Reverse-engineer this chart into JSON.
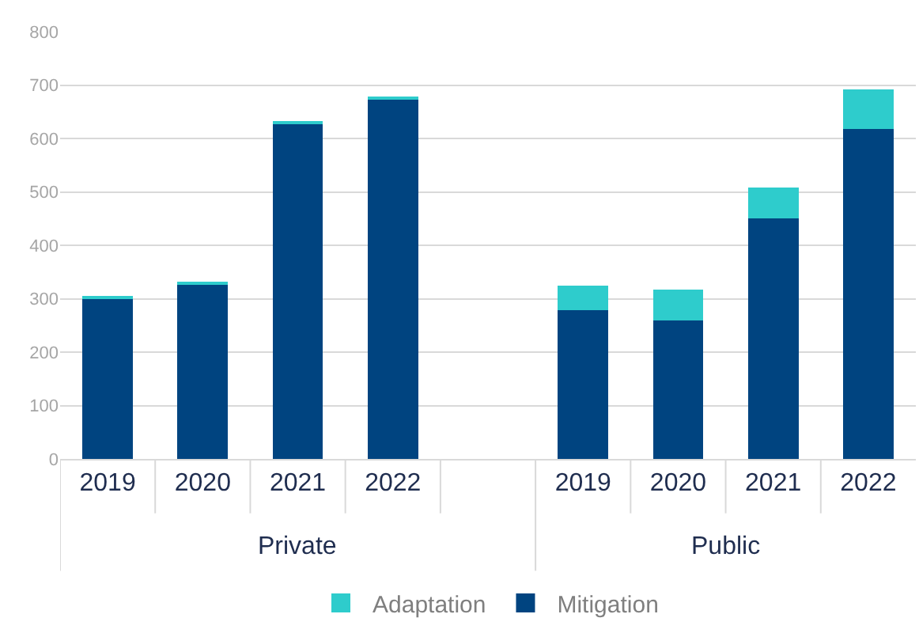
{
  "chart_data": {
    "type": "bar",
    "stacked": true,
    "categories": [
      "2019",
      "2020",
      "2021",
      "2022",
      null,
      "2019",
      "2020",
      "2021",
      "2022"
    ],
    "series": [
      {
        "name": "Mitigation",
        "color": "#004480",
        "values": [
          299,
          326,
          627,
          672,
          null,
          279,
          259,
          450,
          618
        ]
      },
      {
        "name": "Adaptation",
        "color": "#2ecccc",
        "values": [
          6,
          6,
          6,
          6,
          null,
          46,
          58,
          58,
          74
        ]
      }
    ],
    "annotations": [
      "Private",
      "Public"
    ],
    "ylim": [
      0,
      800
    ],
    "yticks": [
      0,
      100,
      200,
      300,
      400,
      500,
      600,
      700,
      800
    ],
    "grid": "y",
    "legend": "bottom"
  }
}
